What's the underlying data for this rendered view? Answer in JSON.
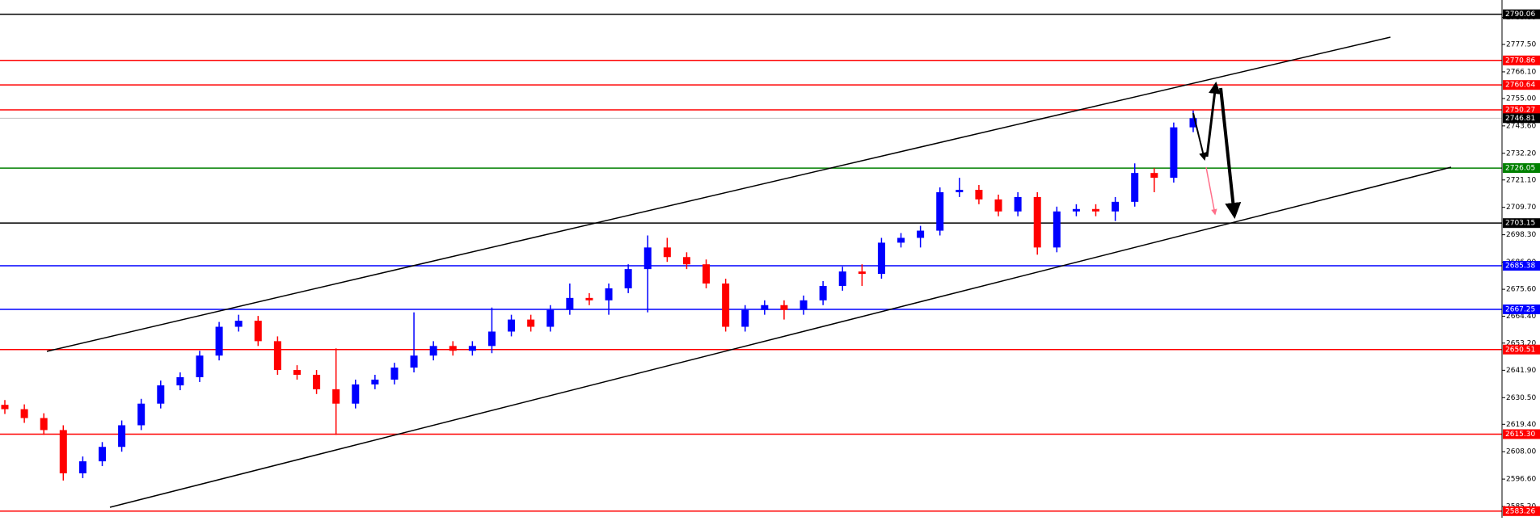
{
  "chart_data": {
    "type": "candlestick",
    "up_color": "#0000ff",
    "down_color": "#ff0000",
    "ylim": [
      2580.5,
      2796
    ],
    "yticks": [
      {
        "value": 2788.8,
        "label": "2788.80"
      },
      {
        "value": 2777.5,
        "label": "2777.50"
      },
      {
        "value": 2766.1,
        "label": "2766.10"
      },
      {
        "value": 2755,
        "label": "2755.00"
      },
      {
        "value": 2743.6,
        "label": "2743.60"
      },
      {
        "value": 2732.2,
        "label": "2732.20"
      },
      {
        "value": 2721.1,
        "label": "2721.10"
      },
      {
        "value": 2709.7,
        "label": "2709.70"
      },
      {
        "value": 2698.3,
        "label": "2698.30"
      },
      {
        "value": 2686.9,
        "label": "2686.90"
      },
      {
        "value": 2675.6,
        "label": "2675.60"
      },
      {
        "value": 2664.4,
        "label": "2664.40"
      },
      {
        "value": 2653.2,
        "label": "2653.20"
      },
      {
        "value": 2641.9,
        "label": "2641.90"
      },
      {
        "value": 2630.5,
        "label": "2630.50"
      },
      {
        "value": 2619.4,
        "label": "2619.40"
      },
      {
        "value": 2608,
        "label": "2608.00"
      },
      {
        "value": 2596.6,
        "label": "2596.60"
      },
      {
        "value": 2585.2,
        "label": "2585.20"
      }
    ],
    "levels": [
      {
        "value": 2790.06,
        "label": "2790.06",
        "color": "#000000"
      },
      {
        "value": 2770.86,
        "label": "2770.86",
        "color": "#ff0000"
      },
      {
        "value": 2760.64,
        "label": "2760.64",
        "color": "#ff0000"
      },
      {
        "value": 2750.27,
        "label": "2750.27",
        "color": "#ff0000"
      },
      {
        "value": 2746.81,
        "label": "2746.81",
        "color": "#c0c0c0"
      },
      {
        "value": 2726.05,
        "label": "2726.05",
        "color": "#008000"
      },
      {
        "value": 2703.15,
        "label": "2703.15",
        "color": "#000000"
      },
      {
        "value": 2685.38,
        "label": "2685.38",
        "color": "#0000ff"
      },
      {
        "value": 2667.25,
        "label": "2667.25",
        "color": "#0000ff"
      },
      {
        "value": 2650.51,
        "label": "2650.51",
        "color": "#ff0000"
      },
      {
        "value": 2615.3,
        "label": "2615.30",
        "color": "#ff0000"
      },
      {
        "value": 2583.26,
        "label": "2583.26",
        "color": "#ff0000"
      }
    ],
    "open": [
      2627.5,
      2625.7,
      2622,
      2617,
      2599,
      2604,
      2610,
      2619,
      2628,
      2635.6,
      2639,
      2648,
      2660,
      2662.5,
      2654,
      2642,
      2640,
      2634,
      2628,
      2636,
      2638,
      2643,
      2648,
      2652,
      2650,
      2652,
      2658,
      2663,
      2660,
      2667,
      2672,
      2671,
      2676,
      2684,
      2693,
      2689,
      2686,
      2678,
      2660,
      2667,
      2669,
      2667,
      2671,
      2677,
      2683,
      2682,
      2695,
      2697,
      2700,
      2716,
      2717,
      2713,
      2708,
      2714,
      2693,
      2708,
      2709,
      2708,
      2712,
      2724,
      2722,
      2743
    ],
    "high": [
      2629.5,
      2627.7,
      2624,
      2619,
      2606,
      2612,
      2621,
      2630,
      2637.6,
      2641,
      2650,
      2662,
      2665,
      2664.5,
      2656,
      2644,
      2642,
      2651,
      2638,
      2640,
      2645,
      2666,
      2654,
      2654,
      2654,
      2668,
      2665,
      2665,
      2669,
      2678,
      2674,
      2678,
      2686,
      2698,
      2697,
      2691,
      2688,
      2680,
      2669,
      2671,
      2671,
      2673,
      2679,
      2685,
      2686,
      2697,
      2699,
      2702,
      2718,
      2722,
      2719,
      2715,
      2716,
      2716,
      2710,
      2711,
      2711,
      2714,
      2728,
      2726,
      2745,
      2750
    ],
    "low": [
      2623.7,
      2620,
      2615,
      2596,
      2597,
      2602,
      2608,
      2617,
      2626,
      2633.6,
      2637,
      2646,
      2658,
      2652,
      2640,
      2638,
      2632,
      2615,
      2626,
      2634,
      2636,
      2641,
      2646,
      2648,
      2648,
      2649,
      2656,
      2658,
      2658,
      2665,
      2669,
      2665,
      2674,
      2666,
      2687,
      2684,
      2676,
      2658,
      2658,
      2665,
      2663,
      2665,
      2669,
      2675,
      2677,
      2680,
      2693,
      2693,
      2698,
      2714,
      2711,
      2706,
      2706,
      2690,
      2691,
      2706,
      2706,
      2704,
      2710,
      2716,
      2720,
      2741
    ],
    "close": [
      2625.7,
      2622,
      2617,
      2599,
      2604,
      2610,
      2619,
      2628,
      2635.6,
      2639,
      2648,
      2660,
      2662.5,
      2654,
      2642,
      2640,
      2634,
      2628,
      2636,
      2638,
      2643,
      2648,
      2652,
      2650,
      2652,
      2658,
      2663,
      2660,
      2667,
      2672,
      2671,
      2676,
      2684,
      2693,
      2689,
      2686,
      2678,
      2660,
      2667,
      2669,
      2667,
      2671,
      2677,
      2683,
      2682,
      2695,
      2697,
      2700,
      2716,
      2717,
      2713,
      2708,
      2714,
      2693,
      2708,
      2709,
      2708,
      2712,
      2724,
      2722,
      2743,
      2746.81
    ]
  }
}
